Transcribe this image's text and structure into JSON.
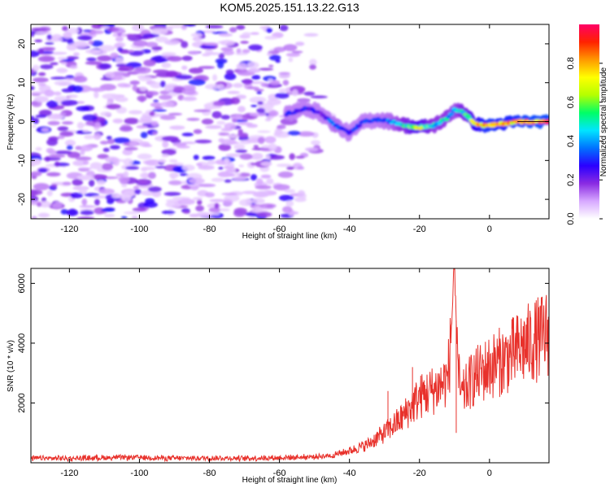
{
  "chart_data": [
    {
      "type": "heatmap",
      "title": "KOM5.2025.151.13.22.G13",
      "xlabel": "Height of straight line (km)",
      "ylabel": "Frequency (Hz)",
      "xlim": [
        -131,
        17
      ],
      "ylim": [
        -25,
        25
      ],
      "x_ticks": [
        -120,
        -100,
        -80,
        -60,
        -40,
        -20,
        0
      ],
      "y_ticks": [
        20,
        10,
        0,
        -10,
        -20
      ],
      "colorbar": {
        "label": "Normalized spectral amplitude",
        "range": [
          0,
          1
        ],
        "ticks": [
          0.0,
          0.2,
          0.4,
          0.6,
          0.8
        ],
        "tick_labels": [
          "0.0",
          "0.2",
          "0.4",
          "0.6",
          "0.8"
        ],
        "colormap": [
          "#ffffff",
          "#d7a8ff",
          "#8a2be2",
          "#2a00ff",
          "#0072ff",
          "#00e5ff",
          "#00ff66",
          "#b4ff00",
          "#ffff00",
          "#ff9900",
          "#ff2200",
          "#ff0066"
        ]
      },
      "description_of_content": {
        "noise_region_x": [
          -131,
          -45
        ],
        "noise_amplitude_range": [
          0.05,
          0.3
        ],
        "signal_track": {
          "x": [
            -58,
            -52,
            -48,
            -44,
            -40,
            -36,
            -32,
            -28,
            -24,
            -20,
            -16,
            -12,
            -10,
            -8,
            -6,
            -4,
            -2,
            0,
            4,
            8,
            12,
            17
          ],
          "freq": [
            2,
            3.5,
            2,
            -1,
            -3,
            0,
            0.5,
            0,
            -1,
            -1.5,
            -1,
            1,
            3,
            3,
            1,
            -0.5,
            -1,
            -1,
            -0.5,
            0,
            0,
            0
          ],
          "amplitude": [
            0.3,
            0.3,
            0.25,
            0.4,
            0.3,
            0.35,
            0.35,
            0.4,
            0.55,
            0.7,
            0.5,
            0.5,
            0.45,
            0.55,
            0.6,
            0.75,
            0.85,
            0.9,
            0.85,
            0.9,
            0.95,
            0.95
          ]
        }
      }
    },
    {
      "type": "line",
      "xlabel": "Height of straight line (km)",
      "ylabel": "SNR (10 * v/v)",
      "xlim": [
        -131,
        17
      ],
      "ylim": [
        0,
        6500
      ],
      "x_ticks": [
        -120,
        -100,
        -80,
        -60,
        -40,
        -20,
        0
      ],
      "y_ticks": [
        2000,
        4000,
        6000
      ],
      "line_color": "#e8312b",
      "trend": {
        "x": [
          -131,
          -120,
          -110,
          -100,
          -90,
          -80,
          -70,
          -60,
          -50,
          -45,
          -40,
          -35,
          -30,
          -25,
          -20,
          -15,
          -12,
          -11,
          -10,
          -9,
          -8,
          -5,
          0,
          5,
          10,
          15,
          17
        ],
        "y": [
          150,
          150,
          170,
          180,
          150,
          160,
          150,
          170,
          200,
          250,
          400,
          600,
          1000,
          1500,
          2200,
          2500,
          2800,
          4000,
          6500,
          3000,
          2200,
          2800,
          3200,
          3500,
          3900,
          4200,
          4400
        ]
      },
      "notable_points": [
        {
          "x": -10,
          "y": 6500
        },
        {
          "x": -11,
          "y": 4300
        },
        {
          "x": -9.5,
          "y": 1000
        },
        {
          "x": -29,
          "y": 2400
        },
        {
          "x": -22,
          "y": 3200
        }
      ]
    }
  ]
}
